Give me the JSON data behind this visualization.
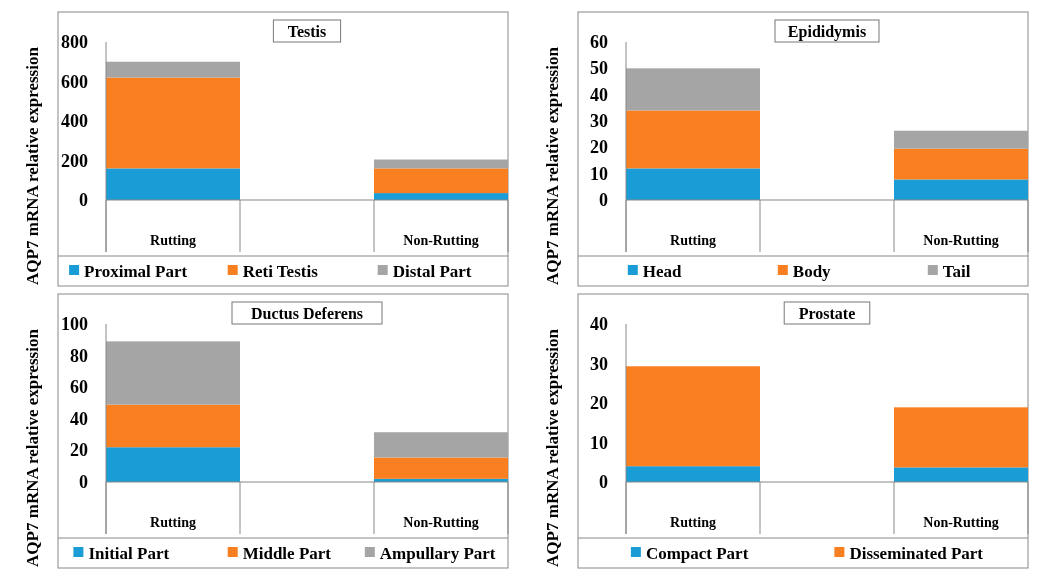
{
  "chart_data": [
    {
      "type": "bar",
      "title": "Testis",
      "ylabel": "AQP7 mRNA relative expression",
      "categories": [
        "Rutting",
        null,
        "Non-Rutting"
      ],
      "stacked": true,
      "legend": "bottom",
      "ylim": [
        0,
        800
      ],
      "yticks": [
        0,
        200,
        400,
        600,
        800
      ],
      "series": [
        {
          "name": "Proximal Part",
          "color": "#1a9cd6",
          "values": [
            160,
            null,
            35
          ]
        },
        {
          "name": "Reti Testis",
          "color": "#f97f20",
          "values": [
            460,
            null,
            125
          ]
        },
        {
          "name": "Distal Part",
          "color": "#a5a5a5",
          "values": [
            80,
            null,
            45
          ]
        }
      ]
    },
    {
      "type": "bar",
      "title": "Epididymis",
      "ylabel": "AQP7 mRNA relative expression",
      "categories": [
        "Rutting",
        null,
        "Non-Rutting"
      ],
      "stacked": true,
      "legend": "bottom",
      "ylim": [
        0,
        60
      ],
      "yticks": [
        0,
        10,
        20,
        30,
        40,
        50,
        60
      ],
      "series": [
        {
          "name": "Head",
          "color": "#1a9cd6",
          "values": [
            12,
            null,
            7.8
          ]
        },
        {
          "name": "Body",
          "color": "#f97f20",
          "values": [
            22,
            null,
            11.7
          ]
        },
        {
          "name": "Tail",
          "color": "#a5a5a5",
          "values": [
            16,
            null,
            6.8
          ]
        }
      ]
    },
    {
      "type": "bar",
      "title": "Ductus Deferens",
      "ylabel": "AQP7 mRNA relative expression",
      "categories": [
        "Rutting",
        null,
        "Non-Rutting"
      ],
      "stacked": true,
      "legend": "bottom",
      "ylim": [
        0,
        100
      ],
      "yticks": [
        0,
        20,
        40,
        60,
        80,
        100
      ],
      "series": [
        {
          "name": "Initial Part",
          "color": "#1a9cd6",
          "values": [
            22,
            null,
            2
          ]
        },
        {
          "name": "Middle Part",
          "color": "#f97f20",
          "values": [
            27,
            null,
            13.5
          ]
        },
        {
          "name": "Ampullary Part",
          "color": "#a5a5a5",
          "values": [
            40,
            null,
            16
          ]
        }
      ]
    },
    {
      "type": "bar",
      "title": "Prostate",
      "ylabel": "AQP7 mRNA relative expression",
      "categories": [
        "Rutting",
        null,
        "Non-Rutting"
      ],
      "stacked": true,
      "legend": "bottom",
      "ylim": [
        0,
        40
      ],
      "yticks": [
        0,
        10,
        20,
        30,
        40
      ],
      "series": [
        {
          "name": "Compact Part",
          "color": "#1a9cd6",
          "values": [
            4,
            null,
            3.7
          ]
        },
        {
          "name": "Disseminated Part",
          "color": "#f97f20",
          "values": [
            25.3,
            null,
            15.2
          ]
        }
      ]
    }
  ]
}
